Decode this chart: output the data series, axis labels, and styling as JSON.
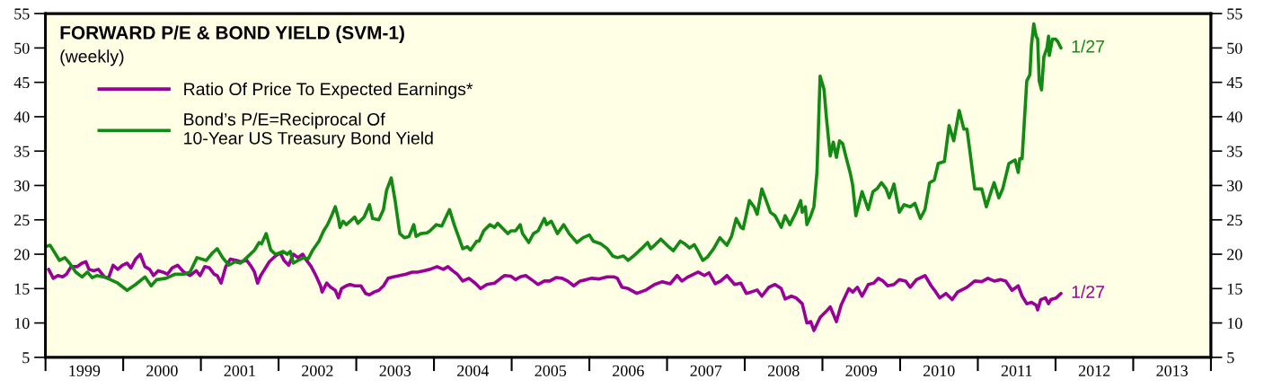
{
  "chart_data": {
    "type": "line",
    "title": "FORWARD P/E & BOND YIELD (SVM-1)",
    "subtitle": "(weekly)",
    "legend": "top left",
    "xlim": [
      1999,
      2014
    ],
    "xticks": [
      {
        "value": 1999,
        "label": null
      },
      {
        "value": 2000,
        "label": null
      },
      {
        "value": 2001,
        "label": null
      },
      {
        "value": 2002,
        "label": null
      },
      {
        "value": 2003,
        "label": null
      },
      {
        "value": 2004,
        "label": null
      },
      {
        "value": 2005,
        "label": null
      },
      {
        "value": 2006,
        "label": null
      },
      {
        "value": 2007,
        "label": null
      },
      {
        "value": 2008,
        "label": null
      },
      {
        "value": 2009,
        "label": null
      },
      {
        "value": 2010,
        "label": null
      },
      {
        "value": 2011,
        "label": null
      },
      {
        "value": 2012,
        "label": null
      },
      {
        "value": 2013,
        "label": null
      },
      {
        "value": 2014,
        "label": null
      },
      {
        "value": 1999.5,
        "label": "1999"
      },
      {
        "value": 2000.5,
        "label": "2000"
      },
      {
        "value": 2001.5,
        "label": "2001"
      },
      {
        "value": 2002.5,
        "label": "2002"
      },
      {
        "value": 2003.5,
        "label": "2003"
      },
      {
        "value": 2004.5,
        "label": "2004"
      },
      {
        "value": 2005.5,
        "label": "2005"
      },
      {
        "value": 2006.5,
        "label": "2006"
      },
      {
        "value": 2007.5,
        "label": "2007"
      },
      {
        "value": 2008.5,
        "label": "2008"
      },
      {
        "value": 2009.5,
        "label": "2009"
      },
      {
        "value": 2010.5,
        "label": "2010"
      },
      {
        "value": 2011.5,
        "label": "2011"
      },
      {
        "value": 2012.5,
        "label": "2012"
      },
      {
        "value": 2013.5,
        "label": "2013"
      }
    ],
    "ylim": [
      5,
      55
    ],
    "yticks": [
      5,
      10,
      15,
      20,
      25,
      30,
      35,
      40,
      45,
      50,
      55
    ],
    "y2lim": [
      5,
      55
    ],
    "y2ticks": [
      5,
      10,
      15,
      20,
      25,
      30,
      35,
      40,
      45,
      50,
      55
    ],
    "series": [
      {
        "name": "Ratio Of Price To Expected Earnings*",
        "color": "#990099",
        "x": [
          1999.04,
          1999.1,
          1999.16,
          1999.22,
          1999.27,
          1999.33,
          1999.41,
          1999.47,
          1999.52,
          1999.56,
          1999.62,
          1999.68,
          1999.76,
          1999.81,
          1999.87,
          1999.93,
          1999.99,
          2000.05,
          2000.1,
          2000.16,
          2000.22,
          2000.28,
          2000.34,
          2000.39,
          2000.45,
          2000.51,
          2000.57,
          2000.63,
          2000.7,
          2000.78,
          2000.86,
          2000.94,
          2000.99,
          2001.05,
          2001.11,
          2001.17,
          2001.21,
          2001.26,
          2001.32,
          2001.38,
          2001.46,
          2001.51,
          2001.59,
          2001.65,
          2001.69,
          2001.73,
          2001.77,
          2001.82,
          2001.88,
          2001.96,
          2002.02,
          2002.07,
          2002.13,
          2002.19,
          2002.25,
          2002.31,
          2002.36,
          2002.42,
          2002.48,
          2002.54,
          2002.56,
          2002.62,
          2002.67,
          2002.73,
          2002.77,
          2002.81,
          2002.87,
          2002.92,
          2002.98,
          2003.06,
          2003.12,
          2003.17,
          2003.23,
          2003.29,
          2003.35,
          2003.41,
          2003.48,
          2003.56,
          2003.64,
          2003.72,
          2003.79,
          2003.87,
          2003.95,
          2004.04,
          2004.12,
          2004.18,
          2004.24,
          2004.3,
          2004.37,
          2004.45,
          2004.53,
          2004.6,
          2004.68,
          2004.78,
          2004.86,
          2004.91,
          2004.99,
          2005.05,
          2005.11,
          2005.18,
          2005.28,
          2005.34,
          2005.42,
          2005.49,
          2005.57,
          2005.65,
          2005.72,
          2005.8,
          2005.88,
          2005.96,
          2006.03,
          2006.13,
          2006.23,
          2006.32,
          2006.36,
          2006.42,
          2006.5,
          2006.61,
          2006.73,
          2006.84,
          2006.94,
          2007.04,
          2007.13,
          2007.19,
          2007.27,
          2007.4,
          2007.48,
          2007.54,
          2007.62,
          2007.69,
          2007.77,
          2007.87,
          2007.95,
          2008.02,
          2008.08,
          2008.16,
          2008.22,
          2008.31,
          2008.39,
          2008.47,
          2008.52,
          2008.6,
          2008.66,
          2008.74,
          2008.8,
          2008.85,
          2008.89,
          2008.97,
          2009.05,
          2009.1,
          2009.18,
          2009.24,
          2009.34,
          2009.39,
          2009.45,
          2009.51,
          2009.59,
          2009.66,
          2009.72,
          2009.78,
          2009.84,
          2009.92,
          2009.99,
          2010.07,
          2010.13,
          2010.21,
          2010.32,
          2010.4,
          2010.46,
          2010.51,
          2010.59,
          2010.67,
          2010.74,
          2010.86,
          2010.96,
          2011.05,
          2011.13,
          2011.21,
          2011.29,
          2011.36,
          2011.44,
          2011.52,
          2011.57,
          2011.63,
          2011.69,
          2011.75,
          2011.77,
          2011.81,
          2011.87,
          2011.91,
          2011.94,
          2012.01,
          2012.07
        ],
        "values": [
          17.8,
          16.5,
          16.9,
          16.7,
          17.1,
          18.2,
          18.2,
          18.7,
          18.9,
          17.8,
          17.6,
          17.8,
          16.7,
          16.5,
          18.4,
          17.8,
          18.4,
          18.7,
          18.0,
          19.3,
          20.0,
          18.2,
          17.8,
          16.9,
          17.6,
          17.4,
          17.1,
          18.0,
          18.4,
          17.4,
          16.9,
          17.6,
          16.9,
          18.2,
          18.0,
          17.1,
          16.9,
          15.8,
          18.2,
          19.3,
          19.1,
          18.9,
          19.1,
          18.2,
          17.4,
          15.8,
          16.9,
          17.8,
          18.9,
          19.75,
          20.2,
          19.1,
          18.4,
          20.0,
          19.5,
          20.0,
          19.1,
          18.2,
          16.9,
          15.4,
          14.5,
          15.8,
          15.2,
          14.75,
          13.65,
          15.0,
          15.4,
          15.6,
          15.4,
          15.4,
          14.3,
          14.1,
          14.5,
          14.75,
          15.4,
          16.5,
          16.7,
          16.9,
          17.1,
          17.4,
          17.4,
          17.6,
          17.8,
          18.2,
          17.8,
          18.2,
          17.6,
          17.1,
          16.1,
          16.5,
          15.8,
          15.0,
          15.6,
          15.8,
          16.5,
          16.9,
          16.8,
          16.3,
          16.7,
          16.9,
          16.1,
          15.6,
          16.1,
          16.1,
          16.6,
          16.5,
          16.1,
          15.4,
          16.1,
          16.3,
          16.5,
          16.4,
          16.7,
          16.7,
          16.5,
          15.2,
          15.0,
          14.3,
          14.8,
          15.6,
          16.0,
          15.7,
          16.9,
          16.1,
          16.7,
          17.4,
          16.9,
          17.3,
          15.7,
          16.1,
          16.9,
          15.6,
          15.8,
          14.3,
          14.5,
          14.8,
          13.9,
          15.2,
          15.6,
          15.0,
          13.5,
          13.9,
          13.65,
          12.8,
          10.0,
          10.2,
          8.9,
          10.8,
          11.7,
          12.35,
          10.2,
          12.6,
          15.0,
          14.5,
          15.2,
          13.9,
          15.6,
          15.8,
          16.5,
          16.1,
          15.4,
          15.6,
          16.3,
          16.1,
          15.2,
          16.3,
          16.9,
          15.4,
          14.5,
          13.65,
          14.3,
          13.4,
          14.5,
          15.2,
          16.1,
          16.0,
          16.5,
          16.1,
          16.3,
          16.1,
          14.75,
          15.4,
          13.9,
          12.8,
          13.0,
          12.6,
          11.9,
          13.4,
          13.65,
          12.8,
          13.4,
          13.65,
          14.3
        ]
      },
      {
        "name": "Bond’s P/E=Reciprocal Of\n10-Year US Treasury Bond Yield",
        "color": "#138a13",
        "x": [
          1999.0,
          1999.06,
          1999.18,
          1999.25,
          1999.31,
          1999.39,
          1999.47,
          1999.54,
          1999.6,
          1999.66,
          1999.78,
          1999.93,
          2000.05,
          2000.16,
          2000.28,
          2000.36,
          2000.43,
          2000.55,
          2000.67,
          2000.78,
          2000.86,
          2000.95,
          2001.07,
          2001.15,
          2001.21,
          2001.28,
          2001.36,
          2001.44,
          2001.51,
          2001.59,
          2001.69,
          2001.75,
          2001.78,
          2001.84,
          2001.9,
          2001.96,
          2002.02,
          2002.06,
          2002.11,
          2002.15,
          2002.19,
          2002.25,
          2002.33,
          2002.38,
          2002.44,
          2002.52,
          2002.58,
          2002.63,
          2002.69,
          2002.73,
          2002.77,
          2002.79,
          2002.83,
          2002.87,
          2002.92,
          2002.98,
          2003.02,
          2003.1,
          2003.17,
          2003.21,
          2003.29,
          2003.35,
          2003.39,
          2003.45,
          2003.5,
          2003.56,
          2003.62,
          2003.68,
          2003.74,
          2003.77,
          2003.83,
          2003.91,
          2003.95,
          2004.03,
          2004.1,
          2004.2,
          2004.26,
          2004.33,
          2004.37,
          2004.43,
          2004.47,
          2004.55,
          2004.58,
          2004.64,
          2004.72,
          2004.78,
          2004.82,
          2004.89,
          2004.95,
          2004.99,
          2005.05,
          2005.11,
          2005.14,
          2005.22,
          2005.28,
          2005.34,
          2005.42,
          2005.45,
          2005.51,
          2005.59,
          2005.67,
          2005.74,
          2005.84,
          2005.92,
          2006.0,
          2006.05,
          2006.15,
          2006.23,
          2006.3,
          2006.36,
          2006.44,
          2006.5,
          2006.57,
          2006.67,
          2006.75,
          2006.79,
          2006.84,
          2006.92,
          2007.0,
          2007.08,
          2007.17,
          2007.23,
          2007.29,
          2007.35,
          2007.4,
          2007.46,
          2007.52,
          2007.6,
          2007.68,
          2007.77,
          2007.83,
          2007.89,
          2007.95,
          2007.98,
          2008.06,
          2008.12,
          2008.16,
          2008.22,
          2008.27,
          2008.33,
          2008.39,
          2008.47,
          2008.52,
          2008.58,
          2008.66,
          2008.72,
          2008.74,
          2008.78,
          2008.8,
          2008.85,
          2008.89,
          2008.93,
          2008.97,
          2009.02,
          2009.05,
          2009.1,
          2009.14,
          2009.18,
          2009.22,
          2009.26,
          2009.3,
          2009.36,
          2009.39,
          2009.43,
          2009.51,
          2009.59,
          2009.65,
          2009.7,
          2009.76,
          2009.82,
          2009.86,
          2009.92,
          2009.99,
          2010.05,
          2010.13,
          2010.19,
          2010.26,
          2010.32,
          2010.38,
          2010.44,
          2010.49,
          2010.57,
          2010.63,
          2010.69,
          2010.76,
          2010.82,
          2010.86,
          2010.9,
          2010.96,
          2011.05,
          2011.11,
          2011.17,
          2011.21,
          2011.27,
          2011.32,
          2011.4,
          2011.48,
          2011.52,
          2011.54,
          2011.57,
          2011.63,
          2011.67,
          2011.69,
          2011.72,
          2011.75,
          2011.77,
          2011.79,
          2011.82,
          2011.85,
          2011.89,
          2011.91,
          2011.92,
          2011.96,
          2012.0,
          2012.03,
          2012.07
        ],
        "values": [
          21.1,
          21.3,
          19.1,
          19.5,
          18.7,
          17.4,
          16.7,
          17.4,
          16.6,
          16.9,
          16.6,
          15.8,
          14.75,
          15.6,
          16.7,
          15.4,
          16.3,
          16.5,
          17.1,
          17.1,
          17.4,
          19.5,
          19.1,
          20.2,
          20.8,
          19.5,
          18.4,
          18.9,
          18.7,
          19.5,
          20.6,
          21.7,
          21.5,
          23.0,
          20.6,
          20.0,
          20.2,
          20.4,
          20.0,
          20.4,
          18.7,
          19.1,
          19.5,
          19.3,
          20.6,
          21.9,
          23.4,
          24.3,
          25.8,
          26.9,
          25.2,
          23.9,
          24.8,
          24.3,
          24.8,
          25.4,
          24.5,
          25.4,
          27.2,
          25.2,
          25.0,
          26.5,
          29.3,
          31.1,
          27.8,
          23.0,
          22.4,
          22.6,
          24.3,
          22.6,
          23.0,
          23.1,
          23.4,
          24.3,
          24.1,
          26.5,
          24.3,
          22.1,
          20.8,
          21.1,
          20.6,
          21.9,
          21.9,
          23.4,
          24.3,
          23.9,
          24.5,
          23.7,
          23.0,
          23.4,
          23.4,
          24.3,
          23.0,
          21.7,
          23.0,
          23.4,
          25.2,
          24.3,
          24.8,
          23.0,
          24.3,
          23.0,
          21.7,
          22.4,
          22.8,
          21.9,
          21.5,
          20.8,
          19.75,
          19.5,
          19.75,
          19.1,
          19.75,
          20.8,
          21.7,
          20.8,
          21.3,
          22.2,
          21.3,
          20.5,
          21.9,
          21.5,
          20.9,
          21.4,
          20.4,
          19.1,
          19.6,
          20.8,
          22.4,
          21.3,
          22.6,
          25.2,
          23.9,
          23.7,
          27.8,
          26.9,
          25.8,
          29.5,
          28.0,
          26.1,
          25.6,
          23.9,
          25.6,
          24.3,
          26.1,
          27.8,
          26.1,
          26.9,
          24.3,
          25.6,
          26.9,
          32.0,
          45.9,
          44.0,
          40.0,
          34.3,
          36.3,
          34.1,
          36.5,
          36.1,
          34.3,
          31.7,
          30.0,
          25.6,
          29.1,
          26.5,
          29.1,
          29.5,
          30.4,
          29.5,
          28.2,
          30.2,
          26.1,
          27.2,
          26.9,
          27.4,
          25.2,
          26.5,
          30.4,
          30.8,
          33.2,
          33.5,
          38.7,
          36.5,
          40.9,
          38.2,
          38.2,
          34.8,
          29.5,
          29.5,
          26.9,
          29.1,
          30.4,
          28.2,
          29.5,
          33.2,
          33.7,
          31.9,
          33.9,
          33.9,
          45.2,
          46.1,
          50.4,
          53.5,
          51.7,
          51.3,
          45.2,
          43.9,
          48.7,
          50.0,
          51.7,
          48.9,
          51.3,
          51.3,
          50.9,
          50.0
        ]
      }
    ],
    "annotations": [
      {
        "text": "1/27",
        "x": 2012.07,
        "y": 14.3
      },
      {
        "text": "1/27",
        "x": 2012.07,
        "y": 50.0
      }
    ]
  }
}
